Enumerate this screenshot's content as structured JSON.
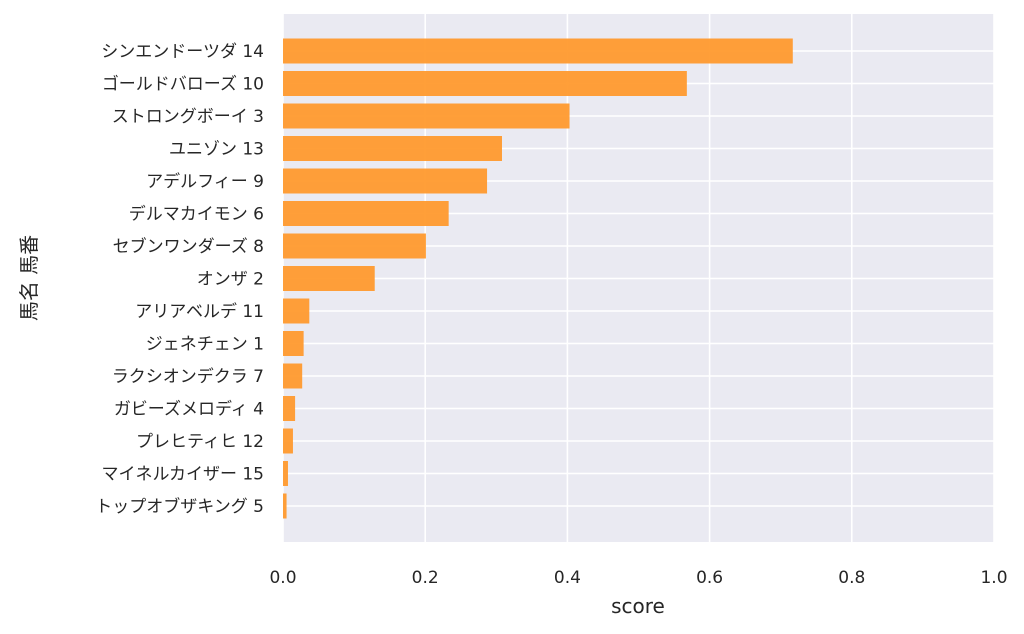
{
  "chart_data": {
    "type": "bar",
    "orientation": "horizontal",
    "title": "",
    "xlabel": "score",
    "ylabel": "馬名 馬番",
    "xlim": [
      0,
      1.0
    ],
    "xticks": [
      "0.0",
      "0.2",
      "0.4",
      "0.6",
      "0.8",
      "1.0"
    ],
    "grid": true,
    "bar_color": "#ff9a2e",
    "background_color": "#eaeaf2",
    "categories": [
      "シンエンドーツダ 14",
      "ゴールドバローズ 10",
      "ストロングボーイ 3",
      "ユニゾン 13",
      "アデルフィー 9",
      "デルマカイモン 6",
      "セブンワンダーズ 8",
      "オンザ 2",
      "アリアベルデ 11",
      "ジェネチェン 1",
      "ラクシオンデクラ 7",
      "ガビーズメロディ 4",
      "プレヒティヒ 12",
      "マイネルカイザー 15",
      "トップオブザキング 5"
    ],
    "values": [
      0.717,
      0.568,
      0.403,
      0.308,
      0.287,
      0.233,
      0.201,
      0.129,
      0.037,
      0.029,
      0.027,
      0.017,
      0.014,
      0.007,
      0.005
    ]
  }
}
